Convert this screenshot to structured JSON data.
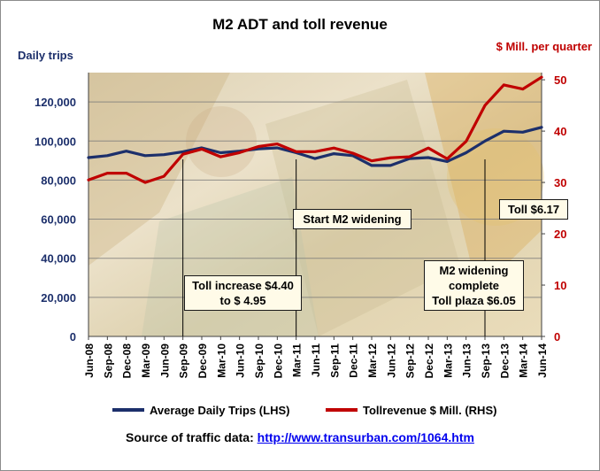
{
  "chart_data": {
    "type": "line",
    "title": "M2 ADT and  toll revenue",
    "left_axis_title": "Daily trips",
    "right_axis_title": "$ Mill. per quarter",
    "left_ylim": [
      0,
      135000
    ],
    "right_ylim": [
      0,
      51.4
    ],
    "left_ticks": [
      "0",
      "20,000",
      "40,000",
      "60,000",
      "80,000",
      "100,000",
      "120,000"
    ],
    "left_tick_values": [
      0,
      20000,
      40000,
      60000,
      80000,
      100000,
      120000
    ],
    "right_ticks": [
      "0",
      "10",
      "20",
      "30",
      "40",
      "50"
    ],
    "right_tick_values": [
      0,
      10,
      20,
      30,
      40,
      50
    ],
    "categories": [
      "Jun-08",
      "Sep-08",
      "Dec-08",
      "Mar-09",
      "Jun-09",
      "Sep-09",
      "Dec-09",
      "Mar-10",
      "Jun-10",
      "Sep-10",
      "Dec-10",
      "Mar-11",
      "Jun-11",
      "Sep-11",
      "Dec-11",
      "Mar-12",
      "Jun-12",
      "Sep-12",
      "Dec-12",
      "Mar-13",
      "Jun-13",
      "Sep-13",
      "Dec-13",
      "Mar-14",
      "Jun-14"
    ],
    "grid": true,
    "legend_position": "bottom",
    "series": [
      {
        "name": "Average Daily Trips (LHS)",
        "axis": "left",
        "color": "#1c2f6b",
        "values": [
          91500,
          92500,
          94800,
          92500,
          93000,
          94500,
          96500,
          94000,
          94800,
          96000,
          96500,
          94000,
          91000,
          93500,
          92500,
          87500,
          87500,
          91000,
          91500,
          89500,
          94000,
          100000,
          105000,
          104500,
          107000
        ]
      },
      {
        "name": "Tollrevenue $ Mill. (RHS)",
        "axis": "right",
        "color": "#c00000",
        "values": [
          30.5,
          31.8,
          31.8,
          30.0,
          31.2,
          35.5,
          36.5,
          35.0,
          35.8,
          37.0,
          37.5,
          36.0,
          36.0,
          36.7,
          35.7,
          34.2,
          34.8,
          35.0,
          36.7,
          34.6,
          38.0,
          45.0,
          49.0,
          48.2,
          50.5
        ]
      }
    ],
    "annotations": [
      {
        "id": "start-widening",
        "lines": [
          "Start M2 widening"
        ],
        "category": "Mar-11"
      },
      {
        "id": "toll-increase",
        "lines": [
          "Toll increase $4.40",
          "to $ 4.95"
        ],
        "category": "Sep-09"
      },
      {
        "id": "widening-complete",
        "lines": [
          "M2 widening",
          "complete",
          "Toll plaza $6.05"
        ],
        "category": "Sep-13"
      },
      {
        "id": "toll-617",
        "lines": [
          "Toll $6.17"
        ],
        "category": "Jun-14"
      }
    ]
  },
  "source": {
    "label": "Source of traffic data: ",
    "url_text": "http://www.transurban.com/1064.htm"
  }
}
